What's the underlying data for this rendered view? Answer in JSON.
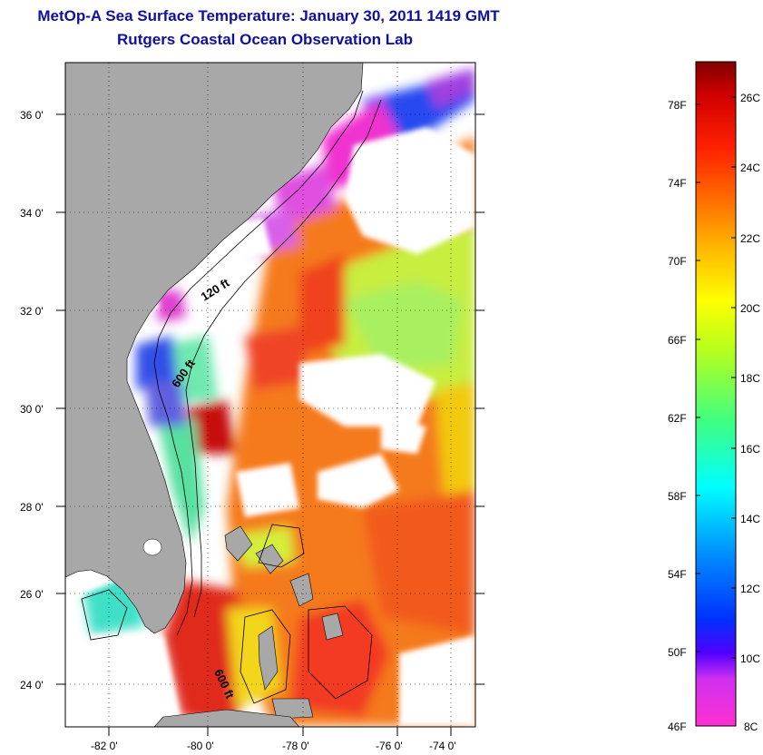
{
  "header": {
    "title": "MetOp-A Sea Surface Temperature:  January 30, 2011 1419 GMT",
    "subtitle": "Rutgers Coastal Ocean Observation Lab"
  },
  "map": {
    "lat_labels": [
      "36 0'",
      "34 0'",
      "32 0'",
      "30 0'",
      "28 0'",
      "26 0'",
      "24 0'"
    ],
    "lon_labels": [
      "-82 0'",
      "-80 0'",
      "-78 0'",
      "-76 0'",
      "-74 0'"
    ],
    "contour_labels": [
      "120 ft",
      "600 ft",
      "600 ft"
    ]
  },
  "colorbar": {
    "fahrenheit_labels": [
      "78F",
      "74F",
      "70F",
      "66F",
      "62F",
      "58F",
      "54F",
      "50F",
      "46F"
    ],
    "celsius_labels": [
      "26C",
      "24C",
      "22C",
      "20C",
      "18C",
      "16C",
      "14C",
      "12C",
      "10C",
      "8C"
    ]
  },
  "colors": {
    "land": "#a8a8a8",
    "title": "#1010a0",
    "no_data": "#ffffff"
  }
}
